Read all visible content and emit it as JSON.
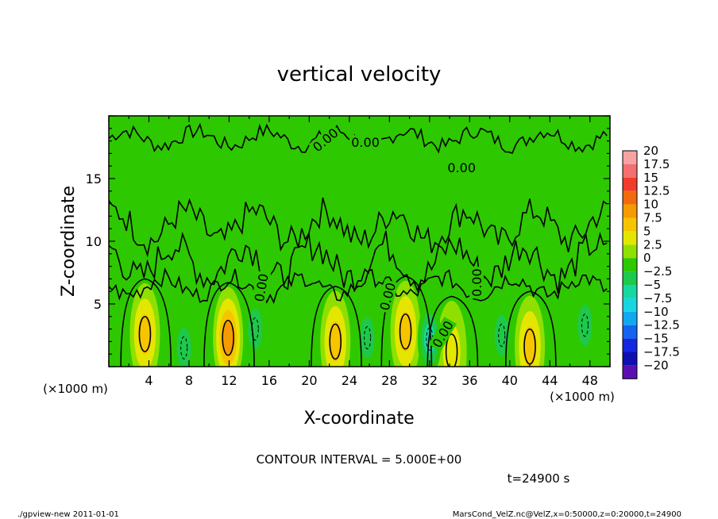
{
  "chart_data": {
    "type": "heatmap",
    "title": "vertical velocity",
    "xlabel": "X-coordinate",
    "ylabel": "Z-coordinate",
    "x_unit_left": "(×1000 m)",
    "x_unit_right": "(×1000 m)",
    "xlim": [
      0,
      50
    ],
    "ylim": [
      0,
      20
    ],
    "xticks": [
      4,
      8,
      12,
      16,
      20,
      24,
      28,
      32,
      36,
      40,
      44,
      48
    ],
    "yticks": [
      5,
      10,
      15
    ],
    "colorbar": {
      "levels": [
        20,
        17.5,
        15,
        12.5,
        10,
        7.5,
        5,
        2.5,
        0,
        -2.5,
        -5,
        -7.5,
        -10,
        -12.5,
        -15,
        -17.5,
        -20
      ],
      "colors": [
        "#f7a3a3",
        "#f46f6f",
        "#f23b2a",
        "#f26a10",
        "#f59a00",
        "#f7c400",
        "#e5e600",
        "#8fe000",
        "#2ec800",
        "#1ec84a",
        "#17d7a0",
        "#16d7e0",
        "#12a8f0",
        "#1464f0",
        "#1428e0",
        "#1010b0",
        "#5a10b0"
      ]
    },
    "contour_interval": "CONTOUR INTERVAL = 5.000E+00",
    "contour_labels": [
      "0.00",
      "0.00",
      "0.00",
      "0.00",
      "0.00",
      "0.00",
      "0.00"
    ],
    "time_label": "t=24900 s",
    "maxima": [
      {
        "x": 3.6,
        "z": 2.6,
        "w": 7.5
      },
      {
        "x": 11.9,
        "z": 2.3,
        "w": 9.0
      },
      {
        "x": 22.6,
        "z": 2.0,
        "w": 6.0
      },
      {
        "x": 29.6,
        "z": 2.8,
        "w": 7.0
      },
      {
        "x": 34.2,
        "z": 1.2,
        "w": 5.0
      },
      {
        "x": 42.0,
        "z": 1.6,
        "w": 6.0
      }
    ],
    "minima": [
      {
        "x": 7.5,
        "z": 1.5,
        "w": -4.0
      },
      {
        "x": 14.6,
        "z": 3.0,
        "w": -5.0
      },
      {
        "x": 25.8,
        "z": 2.3,
        "w": -5.0
      },
      {
        "x": 32.0,
        "z": 2.2,
        "w": -5.5
      },
      {
        "x": 39.2,
        "z": 2.5,
        "w": -4.0
      },
      {
        "x": 47.5,
        "z": 3.3,
        "w": -3.0
      }
    ]
  },
  "footer": {
    "left": "./gpview-new   2011-01-01",
    "right": "MarsCond_VelZ.nc@VelZ,x=0:50000,z=0:20000,t=24900"
  }
}
